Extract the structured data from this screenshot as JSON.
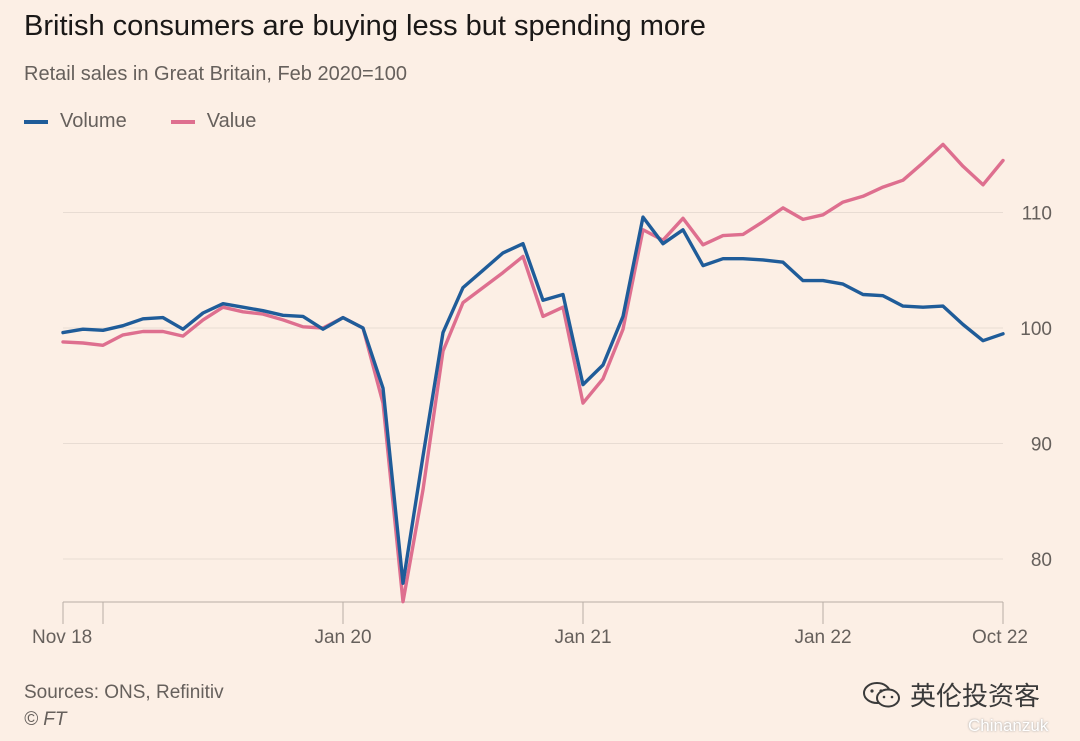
{
  "header": {
    "title": "British consumers are buying less but spending more",
    "subtitle": "Retail sales in Great Britain, Feb 2020=100"
  },
  "legend": {
    "volume_label": "Volume",
    "value_label": "Value"
  },
  "footer": {
    "source": "Sources: ONS, Refinitiv",
    "copyright": "© FT"
  },
  "watermark": {
    "text": "英伦投资客",
    "sub": "Chinanzuk"
  },
  "colors": {
    "background": "#fcefe5",
    "volume": "#1f5c99",
    "value": "#de6f8f",
    "grid": "#e8dcd3",
    "axis_text": "#66605c"
  },
  "chart_data": {
    "type": "line",
    "title": "British consumers are buying less but spending more",
    "subtitle": "Retail sales in Great Britain, Feb 2020=100",
    "x_start": "2018-11",
    "x_end": "2022-10",
    "x_ticks": [
      {
        "label": "Nov 18",
        "date": "2018-11"
      },
      {
        "label": "Jan 20",
        "date": "2020-01"
      },
      {
        "label": "Jan 21",
        "date": "2021-01"
      },
      {
        "label": "Jan 22",
        "date": "2022-01"
      },
      {
        "label": "Oct 22",
        "date": "2022-10"
      }
    ],
    "y_ticks": [
      80,
      90,
      100,
      110
    ],
    "ylim": [
      76,
      116
    ],
    "grid": true,
    "y_axis_side": "right",
    "legend_position": "top-left",
    "x": [
      "2018-11",
      "2018-12",
      "2019-01",
      "2019-02",
      "2019-03",
      "2019-04",
      "2019-05",
      "2019-06",
      "2019-07",
      "2019-08",
      "2019-09",
      "2019-10",
      "2019-11",
      "2019-12",
      "2020-01",
      "2020-02",
      "2020-03",
      "2020-04",
      "2020-05",
      "2020-06",
      "2020-07",
      "2020-08",
      "2020-09",
      "2020-10",
      "2020-11",
      "2020-12",
      "2021-01",
      "2021-02",
      "2021-03",
      "2021-04",
      "2021-05",
      "2021-06",
      "2021-07",
      "2021-08",
      "2021-09",
      "2021-10",
      "2021-11",
      "2021-12",
      "2022-01",
      "2022-02",
      "2022-03",
      "2022-04",
      "2022-05",
      "2022-06",
      "2022-07",
      "2022-08",
      "2022-09",
      "2022-10"
    ],
    "series": [
      {
        "name": "Volume",
        "color": "#1f5c99",
        "values": [
          99.6,
          99.9,
          99.8,
          100.2,
          100.8,
          100.9,
          99.9,
          101.3,
          102.1,
          101.8,
          101.5,
          101.1,
          101.0,
          99.9,
          100.9,
          100.0,
          94.8,
          77.9,
          88.9,
          99.6,
          103.5,
          105.0,
          106.5,
          107.3,
          102.4,
          102.9,
          95.1,
          96.8,
          101.0,
          109.6,
          107.3,
          108.5,
          105.4,
          106.0,
          106.0,
          105.9,
          105.7,
          104.1,
          104.1,
          103.8,
          102.9,
          102.8,
          101.9,
          101.8,
          101.9,
          100.3,
          98.9,
          99.5
        ]
      },
      {
        "name": "Value",
        "color": "#de6f8f",
        "values": [
          98.8,
          98.7,
          98.5,
          99.4,
          99.7,
          99.7,
          99.3,
          100.7,
          101.8,
          101.4,
          101.2,
          100.7,
          100.1,
          100.0,
          100.9,
          100.0,
          93.5,
          76.3,
          86.0,
          98.0,
          102.2,
          103.5,
          104.8,
          106.2,
          101.0,
          101.8,
          93.5,
          95.6,
          99.9,
          108.5,
          107.6,
          109.5,
          107.2,
          108.0,
          108.1,
          109.2,
          110.4,
          109.4,
          109.8,
          110.9,
          111.4,
          112.2,
          112.8,
          114.3,
          115.9,
          114.0,
          112.4,
          114.5
        ]
      }
    ]
  }
}
